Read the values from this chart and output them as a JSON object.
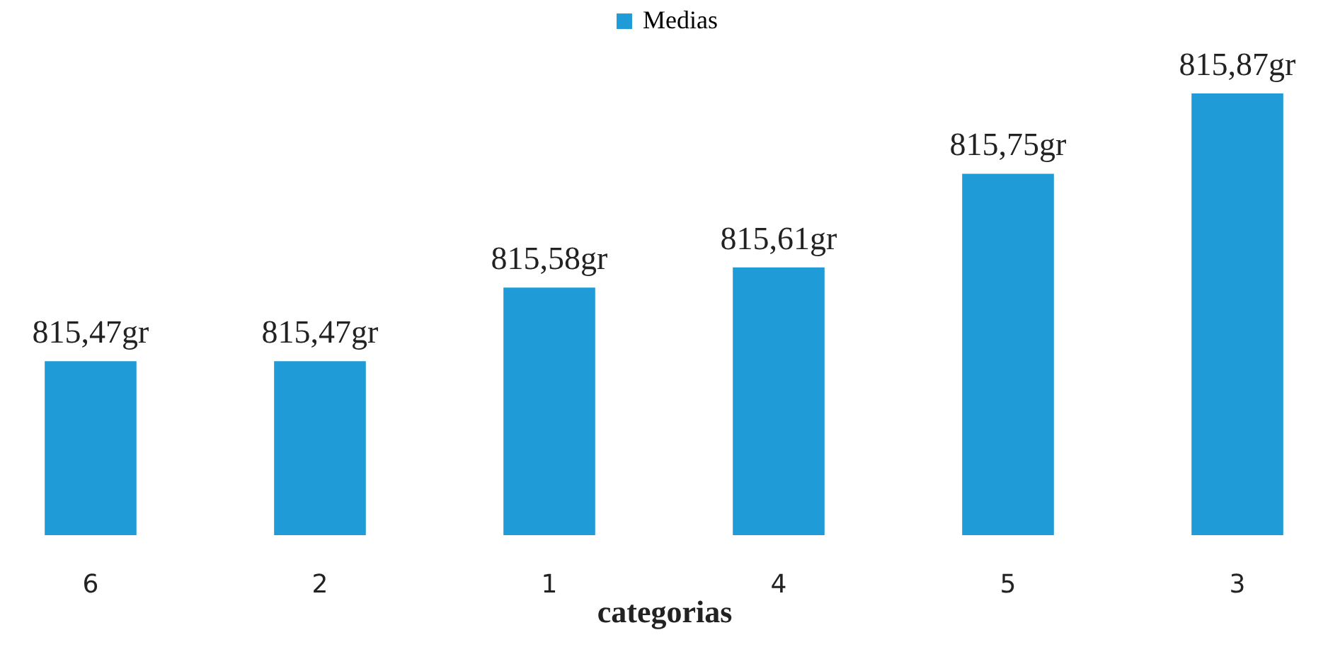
{
  "chart_data": {
    "type": "bar",
    "xlabel": "categorias",
    "categories": [
      "6",
      "2",
      "1",
      "4",
      "5",
      "3"
    ],
    "series": [
      {
        "name": "Medias",
        "color": "#1f9bd7",
        "values": [
          815.47,
          815.47,
          815.58,
          815.61,
          815.75,
          815.87
        ],
        "value_labels": [
          "815,47gr",
          "815,47gr",
          "815,58gr",
          "815,61gr",
          "815,75gr",
          "815,87gr"
        ]
      }
    ],
    "ylim": [
      815.21,
      815.87
    ],
    "legend": "top"
  }
}
